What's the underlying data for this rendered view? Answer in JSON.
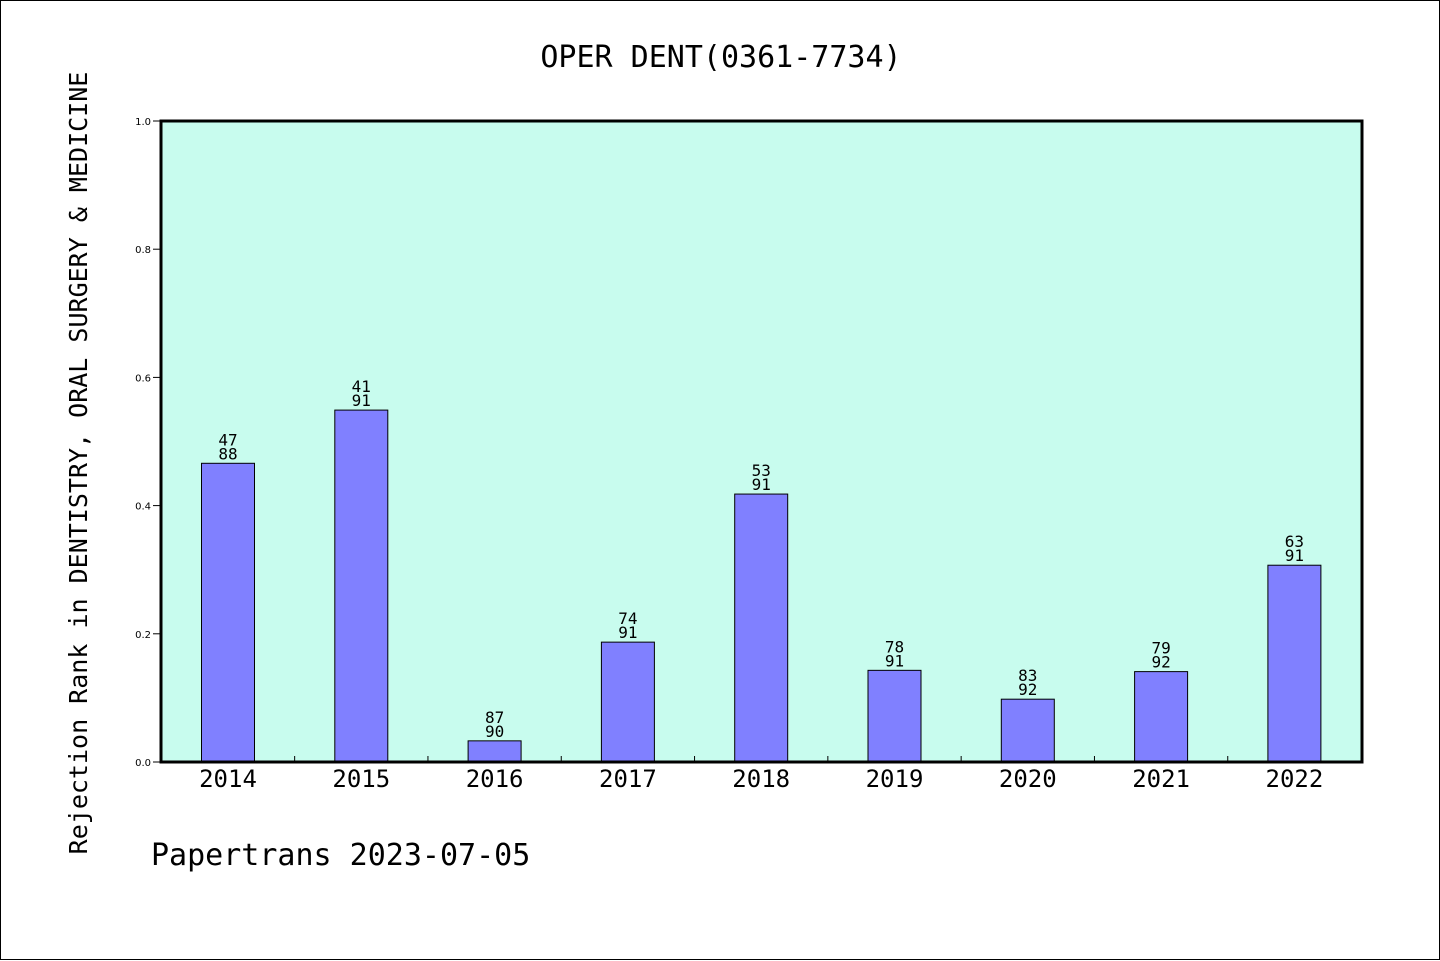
{
  "chart_data": {
    "type": "bar",
    "title": "OPER DENT(0361-7734)",
    "ylabel": "Rejection Rank in DENTISTRY, ORAL SURGERY & MEDICINE",
    "xlabel": "",
    "footer": "Papertrans 2023-07-05",
    "categories": [
      "2014",
      "2015",
      "2016",
      "2017",
      "2018",
      "2019",
      "2020",
      "2021",
      "2022"
    ],
    "values": [
      0.466,
      0.549,
      0.033,
      0.187,
      0.418,
      0.143,
      0.098,
      0.141,
      0.307
    ],
    "rank_labels": [
      "47",
      "41",
      "87",
      "74",
      "53",
      "78",
      "83",
      "79",
      "63"
    ],
    "total_labels": [
      "88",
      "91",
      "90",
      "91",
      "91",
      "91",
      "92",
      "92",
      "91"
    ],
    "ylim": [
      0,
      1.0
    ],
    "yticks": [
      "0.0",
      "0.2",
      "0.4",
      "0.6",
      "0.8",
      "1.0"
    ],
    "grid": false,
    "colors": {
      "plot_background": "#c8fcee",
      "bar_fill": "#8080ff",
      "bar_stroke": "#000000"
    }
  }
}
